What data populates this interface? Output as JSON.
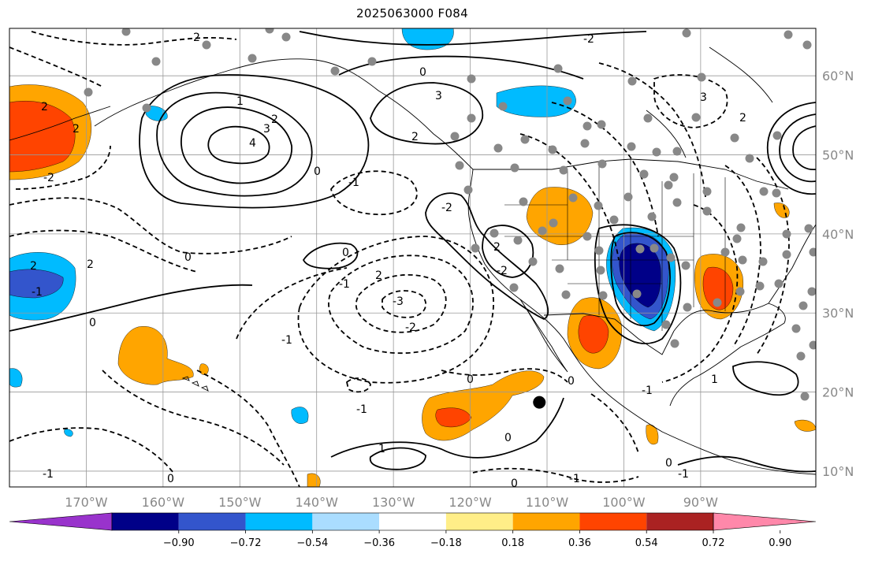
{
  "title": "2025063000 F084",
  "map": {
    "lon_range": [
      -180,
      -75
    ],
    "lat_range": [
      8,
      66
    ],
    "lat_ticks": [
      {
        "value": 10,
        "label": "10°N"
      },
      {
        "value": 20,
        "label": "20°N"
      },
      {
        "value": 30,
        "label": "30°N"
      },
      {
        "value": 40,
        "label": "40°N"
      },
      {
        "value": 50,
        "label": "50°N"
      },
      {
        "value": 60,
        "label": "60°N"
      }
    ],
    "lon_ticks": [
      {
        "value": -170,
        "label": "170°W"
      },
      {
        "value": -160,
        "label": "160°W"
      },
      {
        "value": -150,
        "label": "150°W"
      },
      {
        "value": -140,
        "label": "140°W"
      },
      {
        "value": -130,
        "label": "130°W"
      },
      {
        "value": -120,
        "label": "120°W"
      },
      {
        "value": -110,
        "label": "110°W"
      },
      {
        "value": -100,
        "label": "100°W"
      },
      {
        "value": -90,
        "label": "90°W"
      }
    ],
    "grid": true,
    "contour_labels": [
      "2",
      "2",
      "-2",
      "2",
      "-2",
      "2",
      "2",
      "-1",
      "-2",
      "-2",
      "0",
      "0",
      "1",
      "2",
      "3",
      "4",
      "0",
      "-1",
      "3",
      "2",
      "2",
      "2",
      "-3",
      "-2",
      "-1",
      "-1",
      "0",
      "0",
      "-1",
      "0",
      "-1",
      "1",
      "0",
      "0",
      "0",
      "-1",
      "3",
      "2",
      "1",
      "-1",
      "0",
      "0",
      "-1"
    ],
    "marker": {
      "lon": -111,
      "lat": 18.7
    }
  },
  "colorbar": {
    "colors": [
      "#9933cc",
      "#000088",
      "#3355cc",
      "#00bbff",
      "#aaddff",
      "#ffffff",
      "#ffee88",
      "#ffa500",
      "#ff4400",
      "#aa2222",
      "#ff88aa"
    ],
    "tick_labels": [
      "−0.90",
      "−0.72",
      "−0.54",
      "−0.36",
      "−0.18",
      "0.18",
      "0.36",
      "0.54",
      "0.72",
      "0.90"
    ]
  },
  "colors": {
    "grid": "#999999",
    "axis_label": "#888888",
    "station": "#888888"
  }
}
